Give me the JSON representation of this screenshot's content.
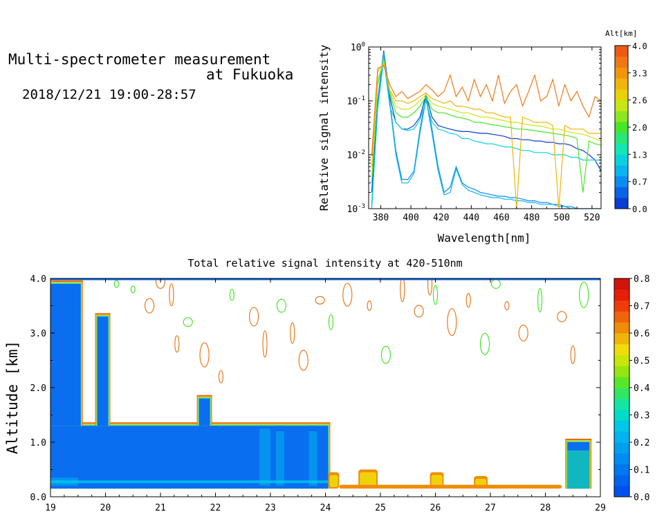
{
  "header": {
    "title_line1": "Multi-spectrometer measurement",
    "title_line2": "at Fukuoka",
    "datetime": "2018/12/21 19:00-28:57"
  },
  "chart_data": [
    {
      "type": "line",
      "title": "",
      "xlabel": "Wavelength[nm]",
      "ylabel": "Relative signal intensity",
      "xlim": [
        372,
        526
      ],
      "ylim": [
        0.001,
        1
      ],
      "yscale": "log",
      "x_ticks": [
        "380",
        "400",
        "420",
        "440",
        "460",
        "480",
        "500",
        "520"
      ],
      "y_ticks": [
        {
          "base": "10",
          "exp": "0"
        },
        {
          "base": "10",
          "exp": "-1"
        },
        {
          "base": "10",
          "exp": "-2"
        },
        {
          "base": "10",
          "exp": "-3"
        }
      ],
      "colorbar": {
        "label": "Alt[km]",
        "range": [
          0.0,
          4.0
        ],
        "tick_labels": [
          "4.0",
          "3.3",
          "2.6",
          "2.0",
          "1.3",
          "0.7",
          "0.0"
        ],
        "colors": [
          "#0a3cd6",
          "#0a64e6",
          "#0a8cf0",
          "#0ab4f0",
          "#0ad2dc",
          "#14e6b4",
          "#28e678",
          "#46e628",
          "#8ce61e",
          "#c8e614",
          "#e6d20a",
          "#f0b40a",
          "#f0960a",
          "#f07814",
          "#ec5a14"
        ]
      },
      "x": [
        374,
        378,
        382,
        386,
        390,
        394,
        398,
        402,
        406,
        410,
        414,
        418,
        422,
        426,
        430,
        434,
        438,
        442,
        446,
        450,
        454,
        458,
        462,
        466,
        470,
        474,
        478,
        482,
        486,
        490,
        494,
        498,
        502,
        506,
        510,
        514,
        518,
        522,
        526
      ],
      "series": [
        {
          "color": "#0a3cd6",
          "values": [
            0.002,
            0.1,
            0.85,
            0.12,
            0.04,
            0.03,
            0.03,
            0.035,
            0.05,
            0.13,
            0.05,
            0.035,
            0.032,
            0.03,
            0.028,
            0.027,
            0.027,
            0.026,
            0.025,
            0.025,
            0.024,
            0.023,
            0.022,
            0.02,
            0.02,
            0.019,
            0.019,
            0.018,
            0.018,
            0.017,
            0.017,
            0.016,
            0.016,
            0.015,
            0.013,
            0.012,
            0.01,
            0.008,
            0.005
          ]
        },
        {
          "color": "#0a8cf0",
          "values": [
            0.0012,
            0.09,
            0.8,
            0.1,
            0.012,
            0.0035,
            0.0035,
            0.005,
            0.03,
            0.12,
            0.03,
            0.006,
            0.002,
            0.0025,
            0.006,
            0.003,
            0.0025,
            0.0023,
            0.002,
            0.0019,
            0.0018,
            0.0017,
            0.0017,
            0.0016,
            0.0016,
            0.0015,
            0.0014,
            0.0014,
            0.0013,
            0.0013,
            0.0012,
            0.0012,
            0.0011,
            0.0011,
            0.001,
            0.001,
            0.001,
            0.001,
            0.001
          ]
        },
        {
          "color": "#0ab4f0",
          "values": [
            0.001,
            0.08,
            0.75,
            0.09,
            0.01,
            0.003,
            0.003,
            0.0045,
            0.025,
            0.11,
            0.025,
            0.005,
            0.0018,
            0.002,
            0.0055,
            0.0028,
            0.0022,
            0.002,
            0.0018,
            0.0017,
            0.0016,
            0.0016,
            0.0015,
            0.0015,
            0.0014,
            0.0014,
            0.0013,
            0.0013,
            0.0012,
            0.0012,
            0.0012,
            0.0011,
            0.0011,
            0.001,
            0.001,
            0.001,
            0.001,
            0.001,
            0.001
          ]
        },
        {
          "color": "#0ad2dc",
          "values": [
            0.001,
            0.07,
            0.6,
            0.08,
            0.04,
            0.03,
            0.028,
            0.03,
            0.045,
            0.1,
            0.04,
            0.03,
            0.028,
            0.025,
            0.024,
            0.02,
            0.02,
            0.018,
            0.017,
            0.016,
            0.016,
            0.015,
            0.014,
            0.014,
            0.013,
            0.012,
            0.012,
            0.011,
            0.011,
            0.011,
            0.01,
            0.01,
            0.01,
            0.009,
            0.009,
            0.008,
            0.008,
            0.008,
            0.008
          ]
        },
        {
          "color": "#46e628",
          "values": [
            0.003,
            0.2,
            0.6,
            0.14,
            0.06,
            0.05,
            0.05,
            0.06,
            0.08,
            0.12,
            0.07,
            0.06,
            0.06,
            0.055,
            0.05,
            0.048,
            0.045,
            0.04,
            0.04,
            0.038,
            0.036,
            0.035,
            0.033,
            0.032,
            0.03,
            0.03,
            0.029,
            0.028,
            0.027,
            0.026,
            0.025,
            0.024,
            0.023,
            0.022,
            0.02,
            0.002,
            0.018,
            0.016,
            0.015
          ]
        },
        {
          "color": "#c8e614",
          "values": [
            0.004,
            0.25,
            0.55,
            0.15,
            0.08,
            0.07,
            0.07,
            0.08,
            0.1,
            0.13,
            0.09,
            0.08,
            0.075,
            0.07,
            0.065,
            0.06,
            0.06,
            0.055,
            0.05,
            0.05,
            0.048,
            0.045,
            0.043,
            0.04,
            0.04,
            0.038,
            0.036,
            0.035,
            0.034,
            0.032,
            0.03,
            0.03,
            0.028,
            0.026,
            0.025,
            0.024,
            0.022,
            0.02,
            0.018
          ]
        },
        {
          "color": "#f0b40a",
          "values": [
            0.006,
            0.35,
            0.5,
            0.16,
            0.1,
            0.1,
            0.09,
            0.1,
            0.12,
            0.14,
            0.11,
            0.1,
            0.09,
            0.1,
            0.08,
            0.08,
            0.075,
            0.07,
            0.07,
            0.06,
            0.06,
            0.055,
            0.05,
            0.05,
            0.001,
            0.05,
            0.045,
            0.04,
            0.04,
            0.04,
            0.035,
            0.001,
            0.035,
            0.03,
            0.03,
            0.03,
            0.025,
            0.025,
            0.025
          ]
        },
        {
          "color": "#f07814",
          "values": [
            0.01,
            0.4,
            0.45,
            0.2,
            0.12,
            0.15,
            0.11,
            0.13,
            0.15,
            0.2,
            0.16,
            0.12,
            0.15,
            0.3,
            0.12,
            0.18,
            0.1,
            0.25,
            0.12,
            0.2,
            0.1,
            0.3,
            0.09,
            0.15,
            0.2,
            0.08,
            0.15,
            0.3,
            0.1,
            0.12,
            0.25,
            0.08,
            0.2,
            0.1,
            0.15,
            0.08,
            0.05,
            0.12,
            0.1
          ]
        }
      ]
    },
    {
      "type": "heatmap",
      "title": "Total relative signal intensity at 420-510nm",
      "xlabel": "",
      "ylabel": "Altitude [km]",
      "xlim": [
        19,
        29
      ],
      "ylim": [
        0.0,
        4.0
      ],
      "x_ticks": [
        "19",
        "20",
        "21",
        "22",
        "23",
        "24",
        "25",
        "26",
        "27",
        "28",
        "29"
      ],
      "y_ticks": [
        "0.0",
        "1.0",
        "2.0",
        "3.0",
        "4.0"
      ],
      "colorbar": {
        "range": [
          0.0,
          0.8
        ],
        "tick_labels": [
          "0.8",
          "0.7",
          "0.6",
          "0.5",
          "0.4",
          "0.3",
          "0.2",
          "0.1",
          "0.0"
        ],
        "colors": [
          "#0050f0",
          "#0064f0",
          "#0078f0",
          "#008cf0",
          "#00a0f0",
          "#00b4f0",
          "#00c8e6",
          "#00dcc8",
          "#14e6a0",
          "#32e664",
          "#5ae628",
          "#96e614",
          "#c8e60a",
          "#f0dc0a",
          "#f0b40a",
          "#f08c0a",
          "#f0640a",
          "#f03c0a",
          "#e61e0a",
          "#d2140a"
        ]
      },
      "regions": [
        {
          "name": "low-layer",
          "x": [
            19.0,
            24.05
          ],
          "alt": [
            0.15,
            1.3
          ],
          "value": 0.05
        },
        {
          "name": "tower-1",
          "x": [
            19.0,
            19.55
          ],
          "alt": [
            1.3,
            3.9
          ],
          "value": 0.06
        },
        {
          "name": "tower-2",
          "x": [
            19.85,
            20.05
          ],
          "alt": [
            1.3,
            3.3
          ],
          "value": 0.06
        },
        {
          "name": "bump",
          "x": [
            21.7,
            21.9
          ],
          "alt": [
            1.3,
            1.8
          ],
          "value": 0.08
        },
        {
          "name": "right-patch",
          "x": [
            28.4,
            28.8
          ],
          "alt": [
            0.15,
            1.0
          ],
          "value": 0.15
        }
      ]
    }
  ]
}
